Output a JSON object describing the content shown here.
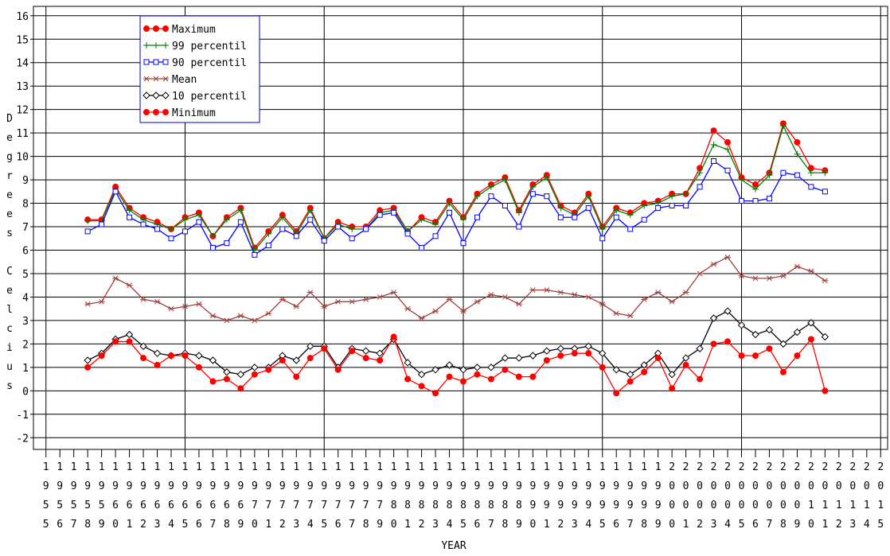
{
  "chart_data": {
    "type": "line",
    "x_label": "YEAR",
    "y_label": "Degrees Celcius",
    "x": [
      1958,
      1959,
      1960,
      1961,
      1962,
      1963,
      1964,
      1965,
      1966,
      1967,
      1968,
      1969,
      1970,
      1971,
      1972,
      1973,
      1974,
      1975,
      1976,
      1977,
      1978,
      1979,
      1980,
      1981,
      1982,
      1983,
      1984,
      1985,
      1986,
      1987,
      1988,
      1989,
      1990,
      1991,
      1992,
      1993,
      1994,
      1995,
      1996,
      1997,
      1998,
      1999,
      2000,
      2001,
      2002,
      2003,
      2004,
      2005,
      2006,
      2007,
      2008,
      2009,
      2010,
      2011
    ],
    "series": [
      {
        "name": "Maximum",
        "color": "#ff0000",
        "marker": "dot",
        "values": [
          7.3,
          7.3,
          8.7,
          7.8,
          7.4,
          7.2,
          6.9,
          7.4,
          7.6,
          6.6,
          7.4,
          7.8,
          6.1,
          6.8,
          7.5,
          6.8,
          7.8,
          6.5,
          7.2,
          7.0,
          7.0,
          7.7,
          7.8,
          6.8,
          7.4,
          7.2,
          8.1,
          7.4,
          8.4,
          8.8,
          9.1,
          7.7,
          8.8,
          9.2,
          7.9,
          7.6,
          8.4,
          7.0,
          7.8,
          7.6,
          8.0,
          8.1,
          8.4,
          8.4,
          9.5,
          11.1,
          10.6,
          9.1,
          8.8,
          9.3,
          11.4,
          10.6,
          9.5,
          9.4
        ]
      },
      {
        "name": "99 percentil",
        "color": "#008000",
        "marker": "plus",
        "values": [
          7.25,
          7.25,
          8.6,
          7.7,
          7.3,
          7.1,
          6.9,
          7.3,
          7.5,
          6.6,
          7.3,
          7.7,
          6.0,
          6.7,
          7.4,
          6.7,
          7.7,
          6.5,
          7.1,
          6.9,
          6.9,
          7.6,
          7.7,
          6.8,
          7.3,
          7.1,
          8.0,
          7.3,
          8.3,
          8.7,
          9.0,
          7.6,
          8.7,
          9.1,
          7.8,
          7.5,
          8.3,
          6.9,
          7.7,
          7.5,
          7.9,
          8.0,
          8.3,
          8.4,
          9.3,
          10.5,
          10.3,
          9.0,
          8.6,
          9.2,
          11.3,
          10.1,
          9.3,
          9.3
        ]
      },
      {
        "name": "90 percentil",
        "color": "#0000ff",
        "marker": "ring",
        "values": [
          6.8,
          7.1,
          8.5,
          7.4,
          7.1,
          6.9,
          6.5,
          6.8,
          7.2,
          6.1,
          6.3,
          7.2,
          5.8,
          6.2,
          6.9,
          6.6,
          7.3,
          6.4,
          7.0,
          6.5,
          6.9,
          7.5,
          7.6,
          6.7,
          6.1,
          6.6,
          7.6,
          6.3,
          7.4,
          8.3,
          7.9,
          7.0,
          8.4,
          8.3,
          7.4,
          7.4,
          7.8,
          6.5,
          7.4,
          6.9,
          7.3,
          7.8,
          7.9,
          7.9,
          8.7,
          9.8,
          9.4,
          8.1,
          8.1,
          8.2,
          9.3,
          9.2,
          8.7,
          8.5
        ]
      },
      {
        "name": "Mean",
        "color": "#a0403c",
        "marker": "star",
        "values": [
          3.7,
          3.8,
          4.8,
          4.5,
          3.9,
          3.8,
          3.5,
          3.6,
          3.7,
          3.2,
          3.0,
          3.2,
          3.0,
          3.3,
          3.9,
          3.6,
          4.2,
          3.6,
          3.8,
          3.8,
          3.9,
          4.0,
          4.2,
          3.5,
          3.1,
          3.4,
          3.9,
          3.4,
          3.8,
          4.1,
          4.0,
          3.7,
          4.3,
          4.3,
          4.2,
          4.1,
          4.0,
          3.7,
          3.3,
          3.2,
          3.9,
          4.2,
          3.8,
          4.2,
          5.0,
          5.4,
          5.7,
          4.9,
          4.8,
          4.8,
          4.9,
          5.3,
          5.1,
          4.7
        ]
      },
      {
        "name": "10 percentil",
        "color": "#000000",
        "marker": "diamond",
        "values": [
          1.3,
          1.6,
          2.2,
          2.4,
          1.9,
          1.6,
          1.5,
          1.6,
          1.5,
          1.3,
          0.8,
          0.7,
          1.0,
          1.0,
          1.5,
          1.3,
          1.9,
          1.9,
          1.0,
          1.8,
          1.7,
          1.6,
          2.2,
          1.2,
          0.7,
          0.9,
          1.1,
          0.9,
          1.0,
          1.0,
          1.4,
          1.4,
          1.5,
          1.7,
          1.8,
          1.8,
          1.9,
          1.6,
          0.9,
          0.7,
          1.1,
          1.6,
          0.7,
          1.4,
          1.8,
          3.1,
          3.4,
          2.8,
          2.4,
          2.6,
          2.0,
          2.5,
          2.9,
          2.3
        ]
      },
      {
        "name": "Minimum",
        "color": "#ff0000",
        "marker": "dot",
        "values": [
          1.0,
          1.5,
          2.1,
          2.1,
          1.4,
          1.1,
          1.5,
          1.5,
          1.0,
          0.4,
          0.5,
          0.1,
          0.7,
          0.9,
          1.3,
          0.6,
          1.4,
          1.8,
          0.9,
          1.7,
          1.4,
          1.3,
          2.3,
          0.5,
          0.2,
          -0.1,
          0.6,
          0.4,
          0.7,
          0.5,
          0.9,
          0.6,
          0.6,
          1.3,
          1.5,
          1.6,
          1.6,
          1.0,
          -0.1,
          0.4,
          0.8,
          1.4,
          0.1,
          1.1,
          0.5,
          2.0,
          2.1,
          1.5,
          1.5,
          1.8,
          0.8,
          1.5,
          2.2,
          0.0
        ]
      }
    ],
    "xlim": [
      1954.1,
      2015.5
    ],
    "xticks": [
      1955,
      1956,
      1957,
      1958,
      1959,
      1960,
      1961,
      1962,
      1963,
      1964,
      1965,
      1966,
      1967,
      1968,
      1969,
      1970,
      1971,
      1972,
      1973,
      1974,
      1975,
      1976,
      1977,
      1978,
      1979,
      1980,
      1981,
      1982,
      1983,
      1984,
      1985,
      1986,
      1987,
      1988,
      1989,
      1990,
      1991,
      1992,
      1993,
      1994,
      1995,
      1996,
      1997,
      1998,
      1999,
      2000,
      2001,
      2002,
      2003,
      2004,
      2005,
      2006,
      2007,
      2008,
      2009,
      2010,
      2011,
      2012,
      2013,
      2014,
      2015
    ],
    "ylim": [
      -2.5,
      16.4
    ],
    "yticks": [
      -2,
      -1,
      0,
      1,
      2,
      3,
      4,
      5,
      6,
      7,
      8,
      9,
      10,
      11,
      12,
      13,
      14,
      15,
      16
    ],
    "grid": true,
    "legend": "upper left"
  }
}
